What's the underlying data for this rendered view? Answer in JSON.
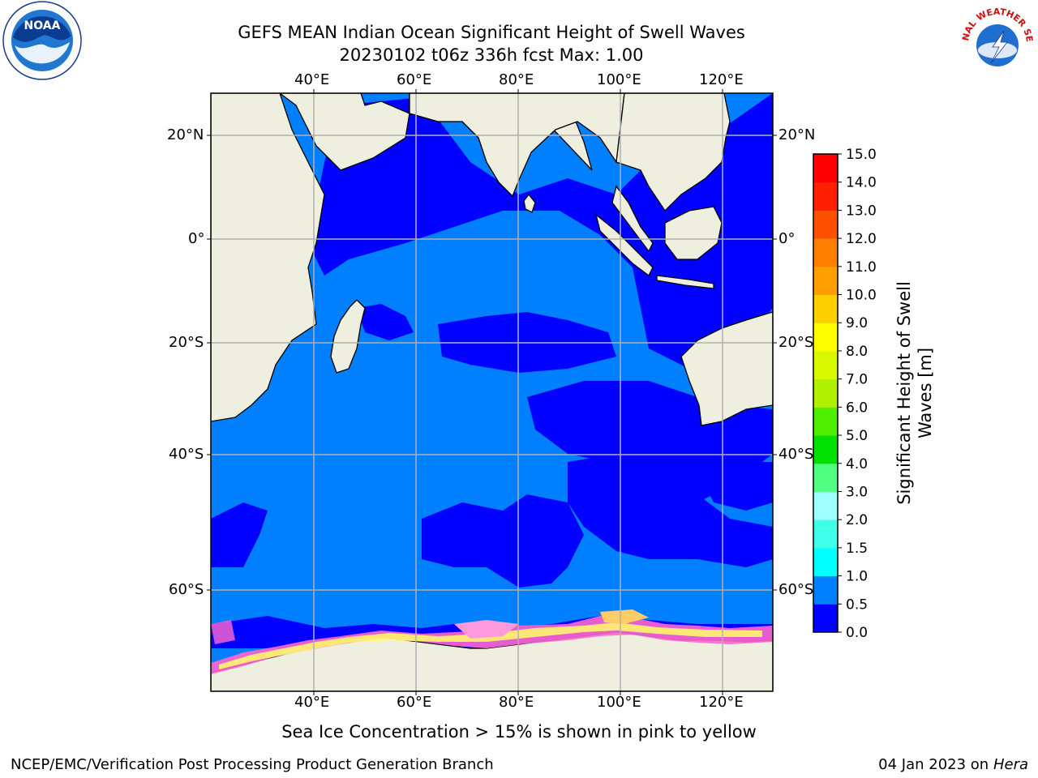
{
  "title": {
    "line1": "GEFS MEAN Indian Ocean Significant Height of Swell Waves",
    "line2": "20230102 t06z 336h fcst   Max: 1.00"
  },
  "map": {
    "lon_labels": [
      "40°E",
      "60°E",
      "80°E",
      "100°E",
      "120°E"
    ],
    "lat_labels": [
      "20°N",
      "0°",
      "20°S",
      "40°S",
      "60°S"
    ],
    "lon_range": [
      20,
      130
    ],
    "lat_range": [
      -74,
      28
    ],
    "colors": {
      "ocean_light": "#0080ff",
      "ocean_dark": "#0000ff",
      "land": "#efefdf",
      "ice_pink": "#ff66cc",
      "ice_yellow": "#ffff66",
      "grid": "#b0b0b0"
    }
  },
  "colorbar": {
    "label_line1": "Significant Height of Swell",
    "label_line2": "Waves [m]",
    "ticks": [
      "0.0",
      "0.5",
      "1.0",
      "1.5",
      "2.0",
      "3.0",
      "4.0",
      "5.0",
      "6.0",
      "7.0",
      "8.0",
      "9.0",
      "10.0",
      "11.0",
      "12.0",
      "13.0",
      "14.0",
      "15.0"
    ],
    "colors": [
      "#0000ff",
      "#0080ff",
      "#00ffff",
      "#40ffe8",
      "#a0ffff",
      "#50ff80",
      "#00e000",
      "#50ee00",
      "#b0f000",
      "#d8f800",
      "#ffff00",
      "#ffd000",
      "#ffa000",
      "#ff8000",
      "#ff5000",
      "#ff2000",
      "#ff0000"
    ]
  },
  "caption": "Sea Ice Concentration > 15% is shown in pink to yellow",
  "footer": {
    "left": "NCEP/EMC/Verification Post Processing Product Generation Branch",
    "right_prefix": "04 Jan 2023 on ",
    "right_machine": "Hera"
  },
  "logos": {
    "noaa_text": "NOAA",
    "nws_text": "NATIONAL WEATHER SERVICE"
  }
}
